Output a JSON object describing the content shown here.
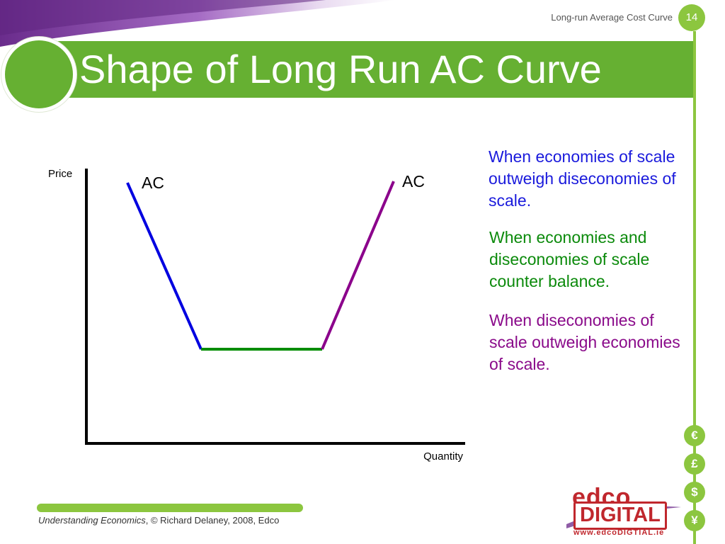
{
  "header": {
    "caption": "Long-run Average Cost Curve",
    "slide_number": "14",
    "title": "Shape of Long Run AC Curve"
  },
  "diagram": {
    "y_axis_label": "Price",
    "x_axis_label": "Quantity",
    "curve_labels": [
      "AC",
      "AC"
    ],
    "segments": [
      {
        "phase": "economies-of-scale",
        "color": "#0000e0"
      },
      {
        "phase": "constant-returns",
        "color": "#008c00"
      },
      {
        "phase": "diseconomies-of-scale",
        "color": "#8b008b"
      }
    ]
  },
  "notes": [
    "When economies of scale outweigh diseconomies of scale.",
    "When economies and diseconomies of scale counter balance.",
    "When diseconomies of scale outweigh economies of scale."
  ],
  "currency_icons": [
    "€",
    "£",
    "$",
    "¥"
  ],
  "footer": {
    "book": "Understanding Economics",
    "credit": ", © Richard Delaney, 2008, Edco"
  },
  "logo": {
    "line1": "edco",
    "line2": "DIGITAL",
    "url": "www.edcoDIGTIAL.ie"
  },
  "colors": {
    "accent_green": "#66b032",
    "light_green": "#8cc63f",
    "header_band": "#7b3f97",
    "logo_red": "#c0272d"
  }
}
